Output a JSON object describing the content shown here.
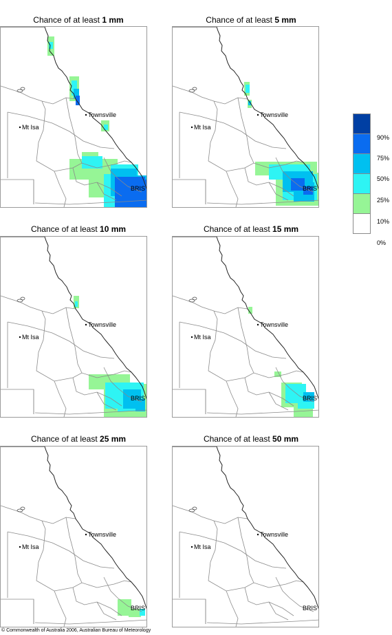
{
  "panels": [
    {
      "title_prefix": "Chance of at least ",
      "amount": "1 mm",
      "towns": {
        "townsville": "Townsville",
        "mt_isa": "Mt Isa",
        "bris": "BRIS"
      },
      "probability_bands": [
        "10%",
        "25%",
        "50%",
        "75%",
        "90%"
      ]
    },
    {
      "title_prefix": "Chance of at least ",
      "amount": "5 mm",
      "towns": {
        "townsville": "Townsville",
        "mt_isa": "Mt Isa",
        "bris": "BRIS"
      }
    },
    {
      "title_prefix": "Chance of at least ",
      "amount": "10 mm",
      "towns": {
        "townsville": "Townsville",
        "mt_isa": "Mt Isa",
        "bris": "BRIS"
      }
    },
    {
      "title_prefix": "Chance of at least ",
      "amount": "15 mm",
      "towns": {
        "townsville": "Townsville",
        "mt_isa": "Mt Isa",
        "bris": "BRIS"
      }
    },
    {
      "title_prefix": "Chance of at least ",
      "amount": "25 mm",
      "towns": {
        "townsville": "Townsville",
        "mt_isa": "Mt Isa",
        "bris": "BRIS"
      }
    },
    {
      "title_prefix": "Chance of at least ",
      "amount": "50 mm",
      "towns": {
        "townsville": "Townsville",
        "mt_isa": "Mt Isa",
        "bris": "BRIS"
      }
    }
  ],
  "legend": {
    "labels": [
      "90%",
      "75%",
      "50%",
      "25%",
      "10%",
      "0%"
    ],
    "colors": [
      "#003fa3",
      "#0a6cf0",
      "#00c0f0",
      "#2ef4f4",
      "#96f596",
      "#ffffff"
    ]
  },
  "colors": {
    "p10": "#96f596",
    "p25": "#2ef4f4",
    "p50": "#00c0f0",
    "p75": "#0a6cf0",
    "p90": "#003fa3"
  },
  "credit": "© Commonwealth of Australia 2006, Australian Bureau of Meteorology"
}
